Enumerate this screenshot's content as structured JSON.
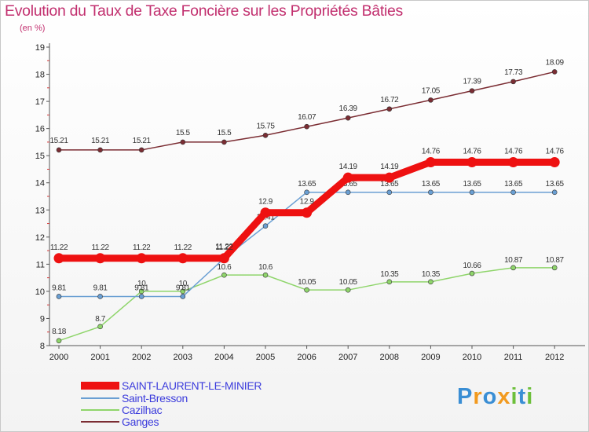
{
  "chart_data": {
    "type": "line",
    "title": "Evolution du Taux de Taxe Foncière sur les Propriétés Bâties",
    "subtitle": "(en %)",
    "x": [
      "2000",
      "2001",
      "2002",
      "2003",
      "2004",
      "2005",
      "2006",
      "2007",
      "2008",
      "2009",
      "2010",
      "2011",
      "2012"
    ],
    "ylim": [
      8,
      19
    ],
    "yticks": [
      8,
      9,
      10,
      11,
      12,
      13,
      14,
      15,
      16,
      17,
      18,
      19
    ],
    "series": [
      {
        "name": "Ganges",
        "color": "#7b2d33",
        "values": [
          15.21,
          15.21,
          15.21,
          15.5,
          15.5,
          15.75,
          16.07,
          16.39,
          16.72,
          17.05,
          17.39,
          17.73,
          18.09
        ],
        "labels": [
          "15.21",
          "15.21",
          "15.21",
          "15.5",
          "15.5",
          "15.75",
          "16.07",
          "16.39",
          "16.72",
          "17.05",
          "17.39",
          "17.73",
          "18.09"
        ]
      },
      {
        "name": "Cazilhac",
        "color": "#8fd56b",
        "values": [
          8.18,
          8.7,
          10,
          10,
          10.6,
          10.6,
          10.05,
          10.05,
          10.35,
          10.35,
          10.66,
          10.87,
          10.87
        ],
        "labels": [
          "8.18",
          "8.7",
          "10",
          "10",
          "10.6",
          "10.6",
          "10.05",
          "10.05",
          "10.35",
          "10.35",
          "10.66",
          "10.87",
          "10.87"
        ]
      },
      {
        "name": "Saint-Bresson",
        "color": "#6a9fd3",
        "values": [
          9.81,
          9.81,
          9.81,
          9.81,
          11.22,
          12.41,
          13.65,
          13.65,
          13.65,
          13.65,
          13.65,
          13.65,
          13.65
        ],
        "labels": [
          "9.81",
          "9.81",
          "9.81",
          "9.81",
          "11.22",
          "12.41",
          "13.65",
          "13.65",
          "13.65",
          "13.65",
          "13.65",
          "13.65",
          "13.65"
        ]
      },
      {
        "name": "SAINT-LAURENT-LE-MINIER",
        "color": "#ee1111",
        "values": [
          11.22,
          11.22,
          11.22,
          11.22,
          11.22,
          12.9,
          12.9,
          14.19,
          14.19,
          14.76,
          14.76,
          14.76,
          14.76
        ],
        "labels": [
          "11.22",
          "11.22",
          "11.22",
          "11.22",
          "11.22",
          "12.9",
          "12.9",
          "14.19",
          "14.19",
          "14.76",
          "14.76",
          "14.76",
          "14.76"
        ]
      }
    ],
    "legend": [
      {
        "label": "SAINT-LAURENT-LE-MINIER",
        "color": "#ee1111"
      },
      {
        "label": "Saint-Bresson",
        "color": "#6a9fd3"
      },
      {
        "label": "Cazilhac",
        "color": "#8fd56b"
      },
      {
        "label": "Ganges",
        "color": "#7b2d33"
      }
    ]
  },
  "logo": {
    "letters": [
      "P",
      "r",
      "o",
      "x",
      "i",
      "t",
      "i"
    ],
    "colors": [
      "#3a8ed4",
      "#f29a1f",
      "#3a8ed4",
      "#f29a1f",
      "#6cbf3a",
      "#3a8ed4",
      "#6cbf3a"
    ]
  }
}
